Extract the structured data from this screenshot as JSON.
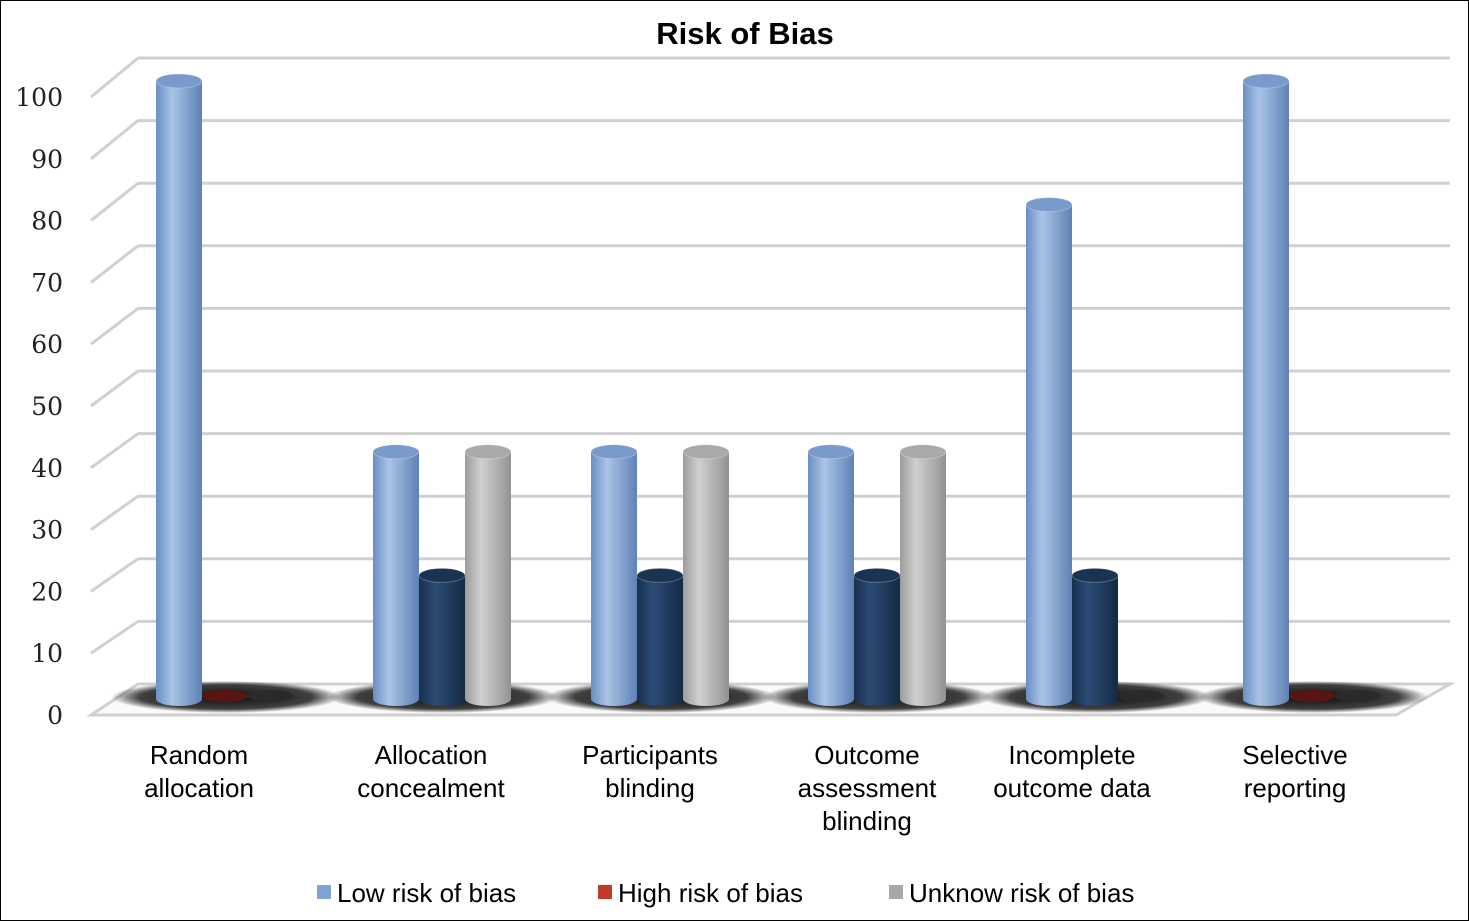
{
  "chart_data": {
    "type": "bar",
    "title": "Risk of Bias",
    "xlabel": "",
    "ylabel": "",
    "ylim": [
      0,
      100
    ],
    "yticks": [
      0,
      10,
      20,
      30,
      40,
      50,
      60,
      70,
      80,
      90,
      100
    ],
    "categories": [
      [
        "Random",
        "allocation"
      ],
      [
        "Allocation",
        "concealment"
      ],
      [
        "Participants",
        "blinding"
      ],
      [
        "Outcome",
        "assessment",
        "blinding"
      ],
      [
        "Incomplete",
        "outcome data"
      ],
      [
        "Selective",
        "reporting"
      ]
    ],
    "series": [
      {
        "name": "Low risk of bias",
        "color": "#7EA3D3",
        "values": [
          100,
          40,
          40,
          40,
          80,
          100
        ]
      },
      {
        "name": "High risk of bias",
        "color": "#1F3A5F",
        "values": [
          0,
          20,
          20,
          20,
          20,
          0
        ]
      },
      {
        "name": "Unknow risk of bias",
        "color": "#B5B5B5",
        "values": [
          0,
          40,
          40,
          40,
          0,
          0
        ]
      }
    ],
    "legend_swatch_colors": [
      "#7EA3D3",
      "#C0392B",
      "#A8A8A8"
    ],
    "grid": true,
    "legend_position": "bottom",
    "style": "3d-cylinder"
  }
}
